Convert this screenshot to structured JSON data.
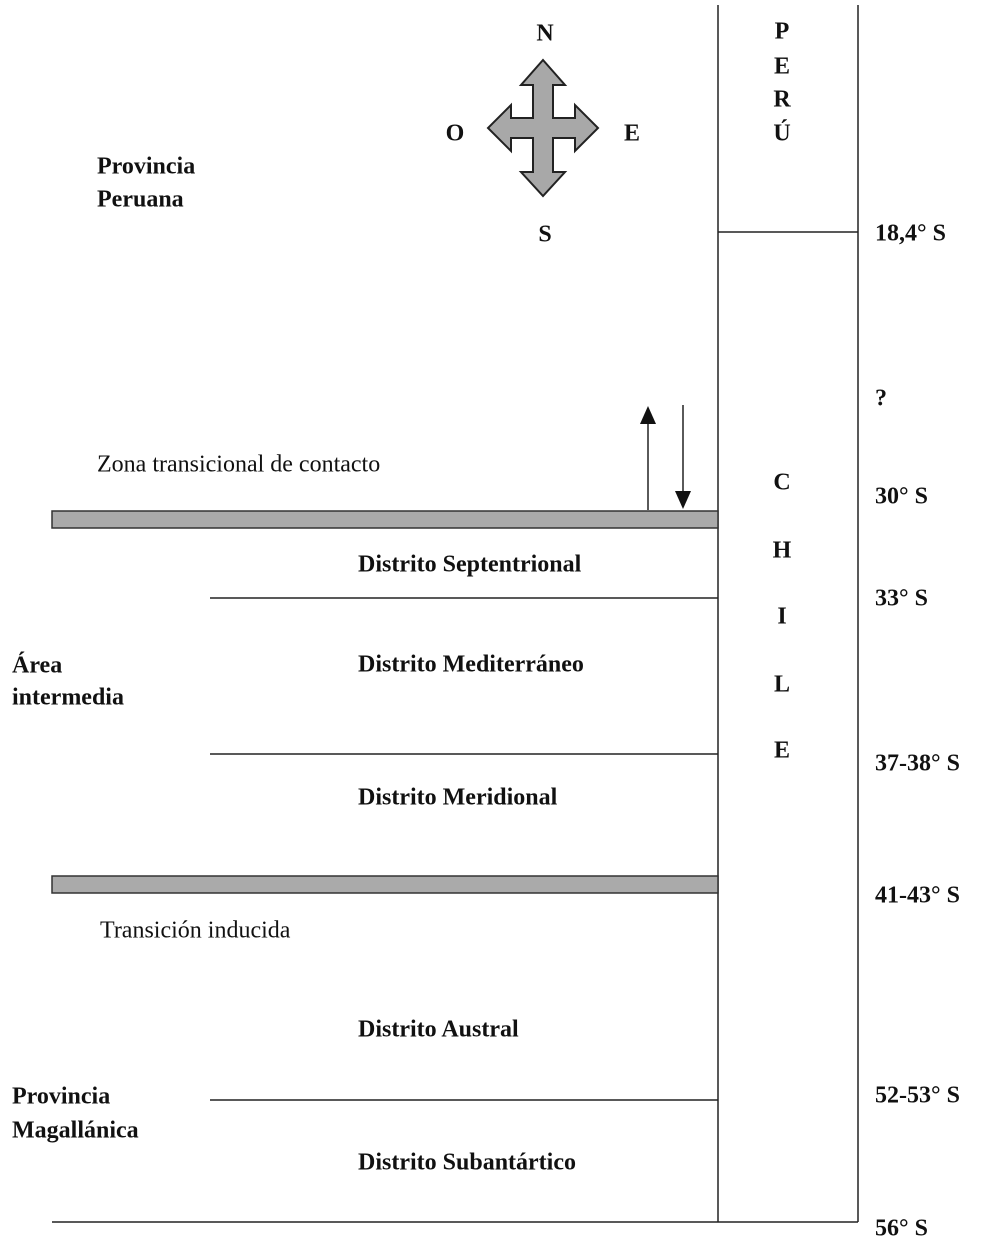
{
  "compass": {
    "north": "N",
    "south": "S",
    "west": "O",
    "east": "E"
  },
  "countries": {
    "peru": [
      "P",
      "E",
      "R",
      "Ú"
    ],
    "chile": [
      "C",
      "H",
      "I",
      "L",
      "E"
    ]
  },
  "regions": {
    "peruana": [
      "Provincia",
      "Peruana"
    ],
    "intermedia": [
      "Área",
      "intermedia"
    ],
    "magallanica": [
      "Provincia",
      "Magallánica"
    ]
  },
  "transitions": {
    "contacto": "Zona transicional de contacto",
    "inducida": "Transición inducida"
  },
  "districts": [
    "Distrito Septentrional",
    "Distrito Mediterráneo",
    "Distrito Meridional",
    "Distrito Austral",
    "Distrito Subantártico"
  ],
  "latitudes": [
    "18,4° S",
    "?",
    "30° S",
    "33° S",
    "37-38° S",
    "41-43° S",
    "52-53° S",
    "56° S"
  ]
}
